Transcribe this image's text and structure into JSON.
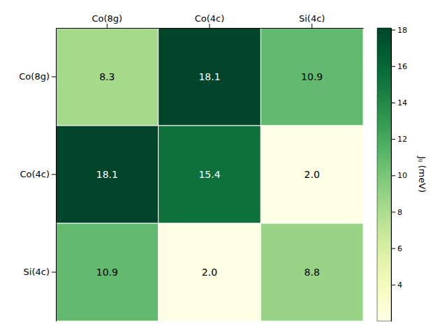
{
  "chart_data": {
    "type": "heatmap",
    "x": [
      "Co(8g)",
      "Co(4c)",
      "Si(4c)"
    ],
    "y": [
      "Co(8g)",
      "Co(4c)",
      "Si(4c)"
    ],
    "values": [
      [
        8.3,
        18.1,
        10.9
      ],
      [
        18.1,
        15.4,
        2.0
      ],
      [
        10.9,
        2.0,
        8.8
      ]
    ],
    "value_labels": [
      [
        "8.3",
        "18.1",
        "10.9"
      ],
      [
        "18.1",
        "15.4",
        "2.0"
      ],
      [
        "10.9",
        "2.0",
        "8.8"
      ]
    ],
    "data_labels": true,
    "color": "YlGn",
    "colorbar_range": [
      2.0,
      18.1
    ],
    "colorbar_ticks": [
      4,
      6,
      8,
      10,
      12,
      14,
      16,
      18
    ],
    "colorbar_label": "Jᵢⱼ (meV)"
  }
}
